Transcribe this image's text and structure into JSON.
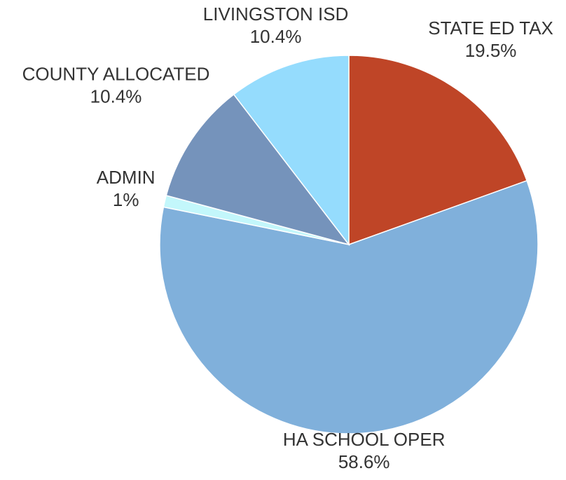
{
  "chart_data": {
    "type": "pie",
    "categories": [
      "STATE ED TAX",
      "HA SCHOOL OPER",
      "ADMIN",
      "COUNTY ALLOCATED",
      "LIVINGSTON ISD"
    ],
    "values": [
      19.5,
      58.6,
      1,
      10.4,
      10.4
    ],
    "value_labels": [
      "19.5%",
      "58.6%",
      "1%",
      "10.4%",
      "10.4%"
    ],
    "colors": [
      "#bf4527",
      "#80b0db",
      "#c3f7fb",
      "#7593bb",
      "#95dcfd"
    ]
  }
}
